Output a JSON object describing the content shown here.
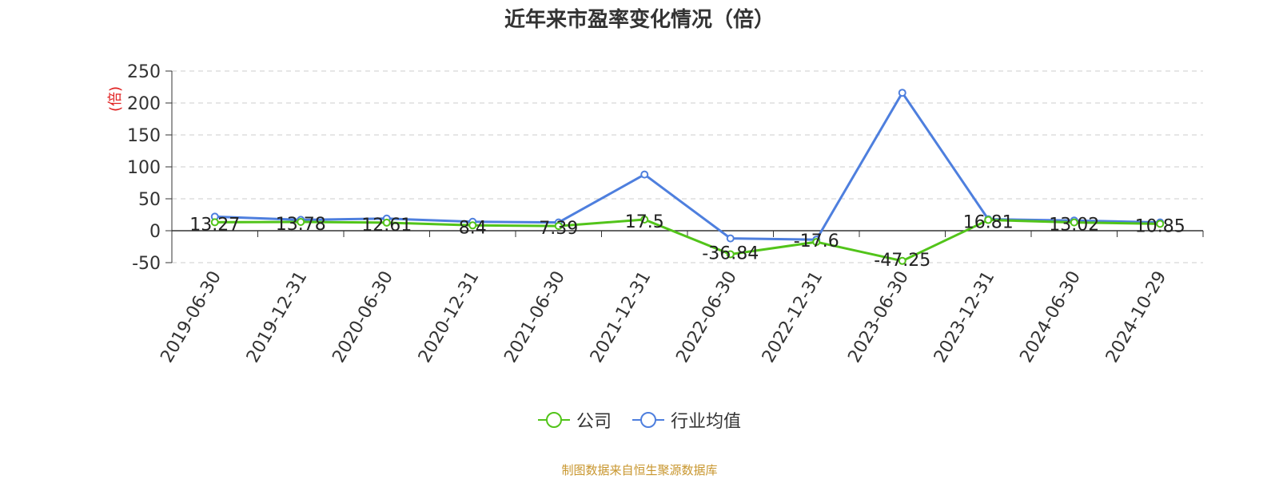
{
  "chart_data": {
    "type": "line",
    "title": "近年来市盈率变化情况（倍）",
    "ylabel": "(倍)",
    "xlabel": "",
    "ylim": [
      -50,
      250
    ],
    "yticks": [
      -50,
      0,
      50,
      100,
      150,
      200,
      250
    ],
    "grid": true,
    "legend_position": "bottom",
    "categories": [
      "2019-06-30",
      "2019-12-31",
      "2020-06-30",
      "2020-12-31",
      "2021-06-30",
      "2021-12-31",
      "2022-06-30",
      "2022-12-31",
      "2023-06-30",
      "2023-12-31",
      "2024-06-30",
      "2024-10-29"
    ],
    "series": [
      {
        "name": "公司",
        "color": "#52c41a",
        "values": [
          13.27,
          13.78,
          12.61,
          8.4,
          7.39,
          17.5,
          -36.84,
          -17.6,
          -47.25,
          16.81,
          13.02,
          10.85
        ],
        "labels": [
          "13.27",
          "13.78",
          "12.61",
          "8.4",
          "7.39",
          "17.5",
          "-36.84",
          "-17.6",
          "-47.25",
          "16.81",
          "13.02",
          "10.85"
        ]
      },
      {
        "name": "行业均值",
        "color": "#4e7fde",
        "values": [
          22,
          17,
          19,
          14,
          13,
          88,
          -12,
          -14,
          216,
          18,
          16,
          13
        ]
      }
    ]
  },
  "source_note": "制图数据来自恒生聚源数据库"
}
